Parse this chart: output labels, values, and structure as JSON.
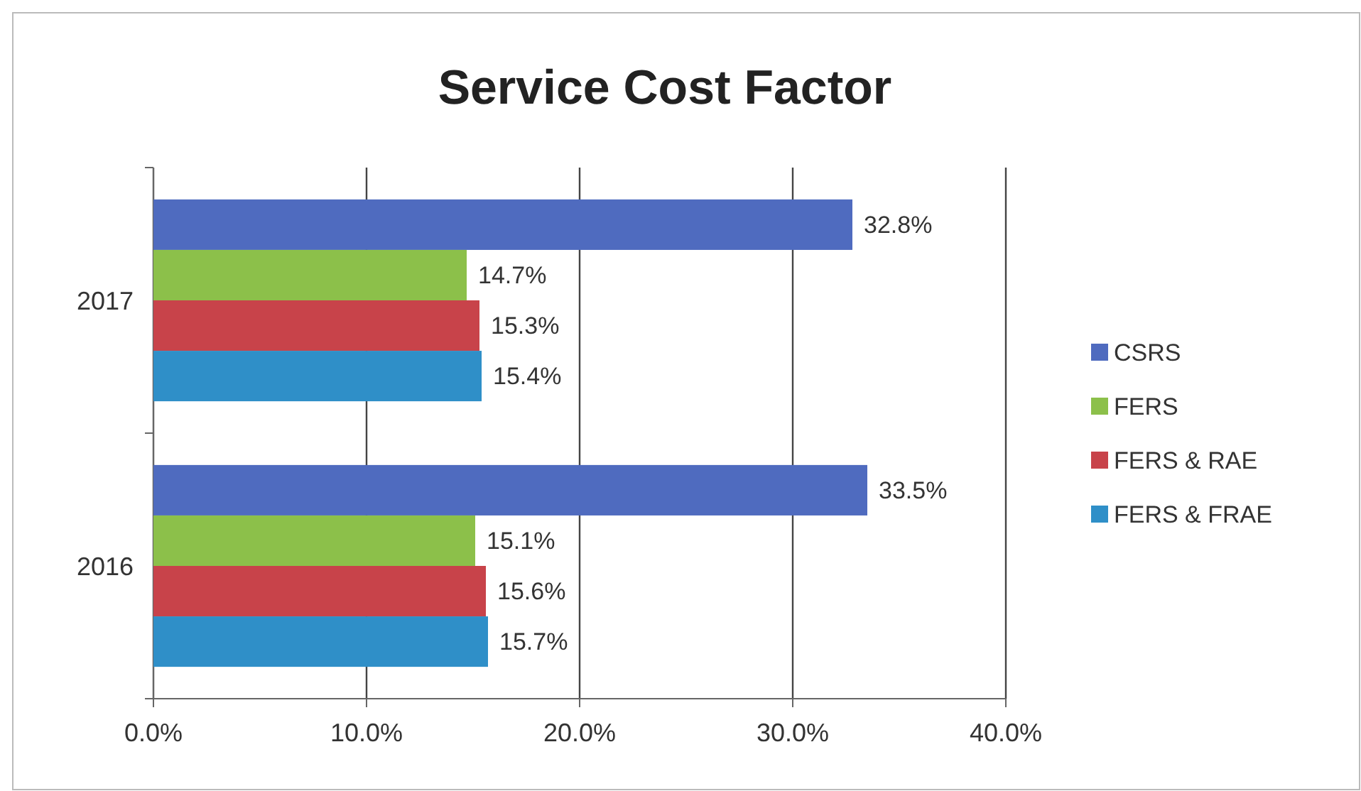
{
  "chart_data": {
    "type": "bar",
    "orientation": "horizontal",
    "title": "Service Cost Factor",
    "categories": [
      "2017",
      "2016"
    ],
    "series": [
      {
        "name": "CSRS",
        "color": "#4f6bbf",
        "values": [
          32.8,
          33.5
        ],
        "value_labels": [
          "32.8%",
          "33.5%"
        ]
      },
      {
        "name": "FERS",
        "color": "#8cc04a",
        "values": [
          14.7,
          15.1
        ],
        "value_labels": [
          "14.7%",
          "15.1%"
        ]
      },
      {
        "name": "FERS & RAE",
        "color": "#c8434a",
        "values": [
          15.3,
          15.6
        ],
        "value_labels": [
          "15.3%",
          "15.6%"
        ]
      },
      {
        "name": "FERS & FRAE",
        "color": "#2f8fc8",
        "values": [
          15.4,
          15.7
        ],
        "value_labels": [
          "15.4%",
          "15.7%"
        ]
      }
    ],
    "xlim": [
      0,
      40
    ],
    "xticks": [
      {
        "value": 0,
        "label": "0.0%"
      },
      {
        "value": 10,
        "label": "10.0%"
      },
      {
        "value": 20,
        "label": "20.0%"
      },
      {
        "value": 30,
        "label": "30.0%"
      },
      {
        "value": 40,
        "label": "40.0%"
      }
    ],
    "grid": "x",
    "legend": "right"
  }
}
